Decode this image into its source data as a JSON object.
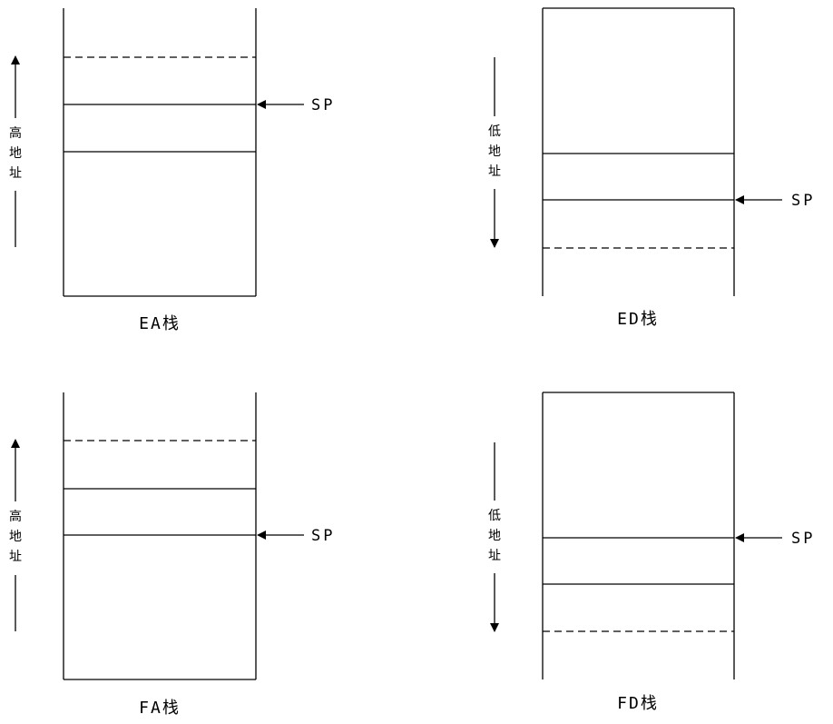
{
  "panels": [
    {
      "caption": "EA栈",
      "sp_label": "SP",
      "addr_label": [
        "高",
        "地",
        "址"
      ]
    },
    {
      "caption": "ED栈",
      "sp_label": "SP",
      "addr_label": [
        "低",
        "地",
        "址"
      ]
    },
    {
      "caption": "FA栈",
      "sp_label": "SP",
      "addr_label": [
        "高",
        "地",
        "址"
      ]
    },
    {
      "caption": "FD栈",
      "sp_label": "SP",
      "addr_label": [
        "低",
        "地",
        "址"
      ]
    }
  ]
}
